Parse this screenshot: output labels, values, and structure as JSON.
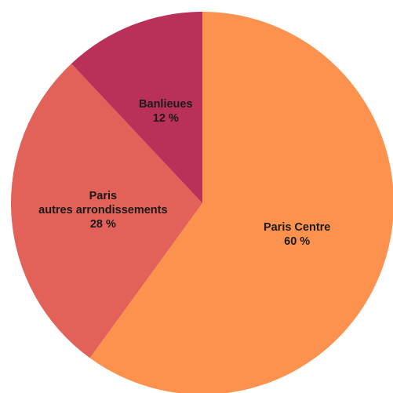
{
  "chart_data": {
    "type": "pie",
    "title": "",
    "start_angle_deg": 0,
    "direction": "clockwise",
    "slices": [
      {
        "label_lines": [
          "Paris Centre"
        ],
        "value": 60,
        "value_label": "60 %",
        "color": "#fd924f"
      },
      {
        "label_lines": [
          "Paris",
          "autres arrondissements"
        ],
        "value": 28,
        "value_label": "28 %",
        "color": "#e26158"
      },
      {
        "label_lines": [
          "Banlieues"
        ],
        "value": 12,
        "value_label": "12 %",
        "color": "#b93058"
      }
    ]
  }
}
